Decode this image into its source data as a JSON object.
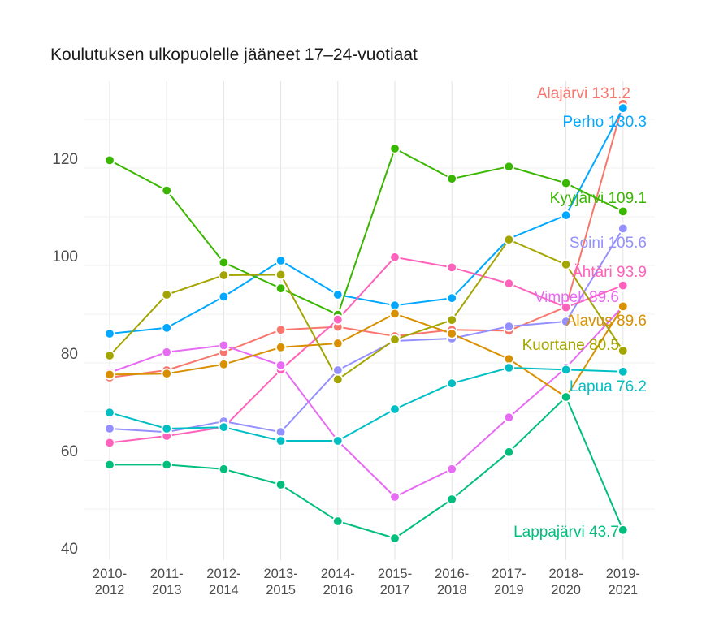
{
  "chart_data": {
    "type": "line",
    "title": "Koulutuksen ulkopuolelle jääneet 17–24-vuotiaat",
    "xlabel": "",
    "ylabel": "",
    "categories": [
      [
        "2010-",
        "2012"
      ],
      [
        "2011-",
        "2013"
      ],
      [
        "2012-",
        "2014"
      ],
      [
        "2013-",
        "2015"
      ],
      [
        "2014-",
        "2016"
      ],
      [
        "2015-",
        "2017"
      ],
      [
        "2016-",
        "2018"
      ],
      [
        "2017-",
        "2019"
      ],
      [
        "2018-",
        "2020"
      ],
      [
        "2019-",
        "2021"
      ]
    ],
    "ylim": [
      38,
      135
    ],
    "yticks": [
      40,
      60,
      80,
      100,
      120
    ],
    "grid": true,
    "legend": "none (end labels)",
    "series": [
      {
        "name": "Alajärvi",
        "label": "Alajärvi 131.2",
        "color": "#F8766D",
        "values": [
          75.0,
          76.5,
          80.2,
          84.8,
          85.4,
          83.5,
          84.8,
          84.6,
          89.5,
          131.2
        ]
      },
      {
        "name": "Perho",
        "label": "Perho 130.3",
        "color": "#00A9FF",
        "values": [
          84.0,
          85.2,
          91.6,
          99.0,
          92.0,
          89.8,
          91.3,
          103.5,
          108.3,
          130.3
        ]
      },
      {
        "name": "Kyyjärvi",
        "label": "Kyyjärvi 109.1",
        "color": "#39B600",
        "values": [
          119.6,
          113.4,
          98.6,
          93.3,
          87.9,
          122.0,
          115.8,
          118.3,
          114.9,
          109.1
        ]
      },
      {
        "name": "Soini",
        "label": "Soini 105.6",
        "color": "#9590FF",
        "values": [
          64.5,
          63.8,
          66.0,
          63.8,
          76.5,
          82.5,
          83.0,
          85.5,
          86.5,
          105.6
        ]
      },
      {
        "name": "Ähtäri",
        "label": "Ähtäri 93.9",
        "color": "#FF62BC",
        "values": [
          61.6,
          63.0,
          64.8,
          76.6,
          86.9,
          99.7,
          97.6,
          94.3,
          89.4,
          93.9
        ]
      },
      {
        "name": "Vimpeli",
        "label": "Vimpeli 89.6",
        "color": "#E76BF3",
        "values": [
          76.0,
          80.2,
          81.6,
          77.5,
          62.0,
          50.5,
          56.2,
          66.8,
          77.0,
          89.6
        ]
      },
      {
        "name": "Alavus",
        "label": "Alavus 89.6",
        "color": "#D89000",
        "values": [
          75.6,
          75.8,
          77.7,
          81.2,
          82.0,
          88.1,
          84.0,
          78.8,
          71.0,
          89.6
        ]
      },
      {
        "name": "Kuortane",
        "label": "Kuortane 80.5",
        "color": "#A3A500",
        "values": [
          79.5,
          92.0,
          96.0,
          96.1,
          74.6,
          82.8,
          86.8,
          103.3,
          98.2,
          80.5
        ]
      },
      {
        "name": "Lapua",
        "label": "Lapua 76.2",
        "color": "#00BFC4",
        "values": [
          67.8,
          64.5,
          64.8,
          62.0,
          62.0,
          68.5,
          73.8,
          77.0,
          76.6,
          76.2
        ]
      },
      {
        "name": "Lappajärvi",
        "label": "Lappajärvi 43.7",
        "color": "#00BF7D",
        "values": [
          57.1,
          57.1,
          56.2,
          53.0,
          45.5,
          42.0,
          50.0,
          59.7,
          71.0,
          43.7
        ]
      }
    ]
  }
}
